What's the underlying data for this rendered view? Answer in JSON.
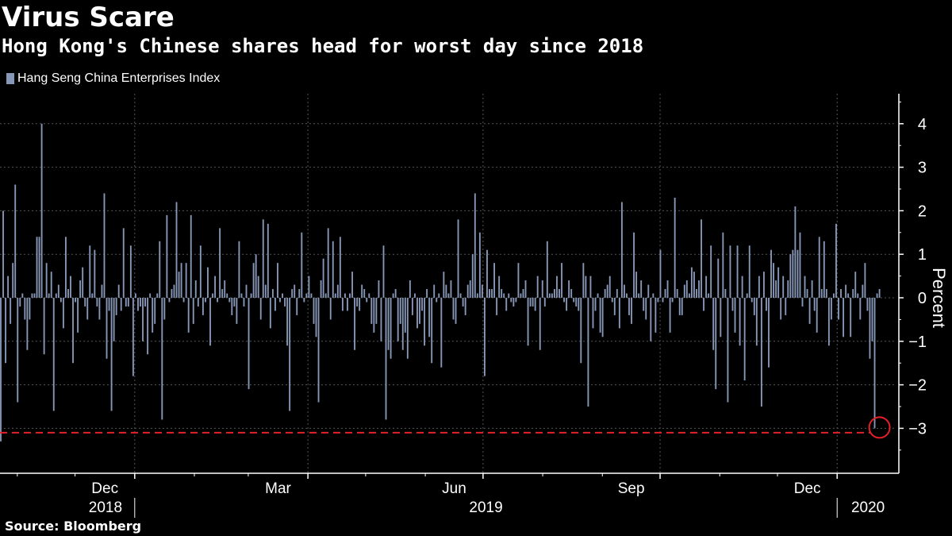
{
  "title": "Virus Scare",
  "subtitle": "Hong Kong's Chinese shares head for worst day since 2018",
  "source": "Source: Bloomberg",
  "colors": {
    "bar": "#8797b7",
    "highlight": "#e8202a",
    "grid": "#555555",
    "background": "#000000"
  },
  "chart_data": {
    "type": "bar",
    "ylabel": "Percent",
    "ylim": [
      -4,
      4.7
    ],
    "yticks": [
      -3,
      -2,
      -1,
      0,
      1,
      2,
      3,
      4
    ],
    "legend": [
      "Hang Seng China Enterprises Index"
    ],
    "legend_position": "top-left",
    "grid": true,
    "month_ticks": [
      "Dec",
      "Mar",
      "Jun",
      "Sep",
      "Dec"
    ],
    "year_labels": [
      "2018",
      "2019",
      "2020"
    ],
    "x_start": "2018-10-23",
    "x_end": "2020-01-31",
    "reference_line": {
      "value": -3.1,
      "style": "dashed",
      "color": "#e8202a"
    },
    "highlight": {
      "date": "2020-01-23",
      "value": -3.0
    },
    "series": [
      {
        "name": "Hang Seng China Enterprises Index",
        "values": [
          -3.3,
          2.0,
          -1.5,
          0.5,
          -0.6,
          0.8,
          2.6,
          -2.4,
          -0.2,
          0.1,
          -0.5,
          -1.2,
          -0.5,
          0.1,
          0.1,
          1.4,
          1.4,
          4.0,
          -1.3,
          0.8,
          0.1,
          0.6,
          -2.6,
          0.1,
          0.3,
          -0.1,
          -0.7,
          1.4,
          0.2,
          0.5,
          -1.5,
          -0.1,
          -0.8,
          0.4,
          0.7,
          -0.2,
          -0.5,
          1.2,
          0.1,
          1.1,
          -0.2,
          -0.5,
          0.3,
          2.4,
          -1.4,
          -0.3,
          -2.6,
          -1.0,
          -0.4,
          0.3,
          -0.3,
          1.6,
          -0.2,
          -0.2,
          1.2,
          -1.8,
          0.1,
          -0.3,
          -0.2,
          -1.0,
          -0.2,
          -1.3,
          0.1,
          -0.8,
          -0.6,
          0.1,
          1.3,
          -2.8,
          -0.5,
          1.9,
          -0.1,
          0.2,
          0.3,
          2.2,
          0.6,
          0.8,
          -0.1,
          0.8,
          -0.8,
          1.9,
          -0.6,
          0.4,
          -0.2,
          1.2,
          -0.4,
          -0.1,
          0.7,
          -1.1,
          0.1,
          0.5,
          -0.1,
          1.6,
          0.2,
          0.4,
          0.1,
          -0.1,
          -0.4,
          -0.2,
          -0.6,
          1.3,
          0.1,
          -0.2,
          0.3,
          -2.1,
          0.1,
          0.8,
          1.0,
          0.5,
          -0.5,
          1.8,
          0.3,
          1.7,
          -0.7,
          0.2,
          -0.3,
          0.8,
          -0.1,
          0.1,
          -0.2,
          -1.1,
          -2.6,
          0.2,
          0.3,
          -0.4,
          0.2,
          1.5,
          -0.1,
          0.1,
          0.5,
          0.1,
          -0.6,
          -0.9,
          -2.4,
          0.4,
          0.9,
          0.1,
          1.6,
          -0.5,
          1.3,
          0.1,
          0.3,
          1.4,
          -0.3,
          0.1,
          -0.3,
          0.1,
          0.6,
          -1.2,
          -0.2,
          -0.3,
          0.3,
          0.2,
          -0.1,
          0.1,
          -0.6,
          -0.8,
          -0.6,
          0.4,
          -1.0,
          1.2,
          -2.8,
          -1.2,
          -1.4,
          0.1,
          0.2,
          -1.0,
          -0.6,
          -1.2,
          -0.8,
          -1.4,
          0.4,
          -0.4,
          0.1,
          -0.7,
          -0.6,
          -0.3,
          -1.1,
          0.2,
          -0.9,
          -1.5,
          0.3,
          -0.1,
          0.1,
          -1.6,
          0.6,
          0.3,
          0.1,
          0.4,
          -0.5,
          -0.6,
          1.8,
          0.1,
          -0.2,
          -0.4,
          0.3,
          0.4,
          1.0,
          2.4,
          0.1,
          1.5,
          0.3,
          -1.8,
          1.1,
          0.2,
          0.2,
          0.8,
          -0.4,
          0.5,
          0.2,
          0.1,
          -0.3,
          0.1,
          -0.1,
          -0.2,
          -0.1,
          0.8,
          0.1,
          0.2,
          0.4,
          -1.1,
          -0.2,
          -0.2,
          -0.3,
          0.5,
          -1.2,
          0.4,
          -0.2,
          1.3,
          0.1,
          0.1,
          0.2,
          0.5,
          0.2,
          0.8,
          -0.1,
          -0.3,
          0.4,
          0.2,
          -0.1,
          -0.2,
          -0.3,
          -1.5,
          0.8,
          0.5,
          -2.5,
          0.5,
          -0.7,
          -0.3,
          0.1,
          -0.8,
          -0.9,
          0.2,
          0.3,
          0.5,
          -0.1,
          -0.4,
          0.2,
          -0.7,
          2.2,
          0.3,
          0.1,
          -0.4,
          -0.6,
          1.5,
          0.6,
          0.1,
          0.4,
          -0.3,
          -0.5,
          0.3,
          -1.0,
          0.1,
          -0.8,
          -0.1,
          1.1,
          -0.1,
          0.2,
          0.4,
          -0.8,
          -0.1,
          2.3,
          0.2,
          -0.4,
          -0.4,
          0.3,
          0.4,
          0.1,
          0.7,
          0.6,
          0.2,
          0.4,
          1.8,
          -0.3,
          0.5,
          0.1,
          1.2,
          -1.2,
          -2.1,
          0.9,
          -0.9,
          1.5,
          0.2,
          -2.4,
          1.2,
          -0.3,
          -0.8,
          1.2,
          -1.1,
          0.5,
          -1.9,
          0.1,
          1.2,
          -0.1,
          -0.4,
          -1.1,
          0.5,
          -2.5,
          0.6,
          -0.3,
          -1.6,
          1.1,
          0.8,
          0.4,
          0.7,
          -0.5,
          0.5,
          -0.4,
          0.4,
          1.0,
          1.1,
          2.1,
          1.1,
          1.5,
          -0.2,
          0.5,
          0.2,
          -0.6,
          0.4,
          -0.3,
          -0.8,
          1.4,
          0.2,
          1.3,
          0.2,
          -1.1,
          -0.5,
          0.1,
          1.7,
          -0.5,
          0.2,
          -0.9,
          0.3,
          0.1,
          -0.9,
          0.2,
          0.6,
          0.1,
          -0.5,
          0.3,
          0.8,
          -0.3,
          -1.4,
          -1.0,
          -3.0,
          0.1,
          0.2
        ]
      }
    ]
  }
}
